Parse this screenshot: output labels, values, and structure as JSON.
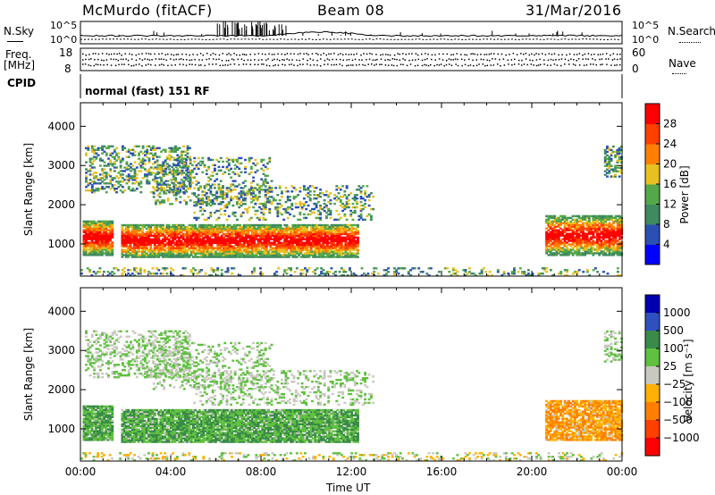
{
  "header": {
    "station": "McMurdo (fitACF)",
    "beam": "Beam 08",
    "date": "31/Mar/2016"
  },
  "status_panels": {
    "nsky_label": "N.Sky",
    "nsky_ticks": [
      "10^5",
      "10^0"
    ],
    "nsearch_label": "N.Search",
    "nsearch_ticks": [
      "10^5",
      "10^0"
    ],
    "freq_label_line1": "Freq.",
    "freq_label_line2": "[MHz]",
    "freq_ticks": [
      "18",
      "8"
    ],
    "nave_label": "Nave",
    "nave_ticks": [
      "60",
      "0"
    ],
    "cpid_label": "CPID",
    "cpid_text": "normal (fast) 151 RF"
  },
  "colors": {
    "power_scale": [
      "#0000ff",
      "#2b4fb5",
      "#3f8a5f",
      "#55a84a",
      "#e8c020",
      "#ff8000",
      "#ff4000",
      "#ff0000"
    ],
    "velocity_scale": [
      "#0000b0",
      "#3050c0",
      "#3a8a4a",
      "#60c040",
      "#c8c8c0",
      "#ffb000",
      "#ff8000",
      "#ff4000",
      "#ff0000"
    ]
  },
  "chart_data": [
    {
      "type": "heatmap",
      "title": "Power",
      "xlabel": "Time UT",
      "ylabel": "Slant Range [km]",
      "x_range_hours": [
        0,
        24
      ],
      "ylim_km": [
        180,
        4600
      ],
      "x_ticks": [
        "00:00",
        "04:00",
        "08:00",
        "12:00",
        "16:00",
        "20:00",
        "00:00"
      ],
      "y_ticks": [
        "1000",
        "2000",
        "3000",
        "4000"
      ],
      "colorbar_label": "Power [dB]",
      "colorbar_ticks": [
        "4",
        "8",
        "12",
        "16",
        "20",
        "24",
        "28"
      ],
      "colorbar_range": [
        0,
        32
      ]
    },
    {
      "type": "heatmap",
      "title": "Velocity",
      "xlabel": "Time UT",
      "ylabel": "Slant Range [km]",
      "x_range_hours": [
        0,
        24
      ],
      "ylim_km": [
        180,
        4600
      ],
      "x_ticks": [
        "00:00",
        "04:00",
        "08:00",
        "12:00",
        "16:00",
        "20:00",
        "00:00"
      ],
      "y_ticks": [
        "1000",
        "2000",
        "3000",
        "4000"
      ],
      "colorbar_label": "Velocity [m s⁻¹]",
      "colorbar_ticks": [
        "1000",
        "500",
        "100",
        "25",
        "−25",
        "−100",
        "−500",
        "−1000"
      ]
    }
  ]
}
